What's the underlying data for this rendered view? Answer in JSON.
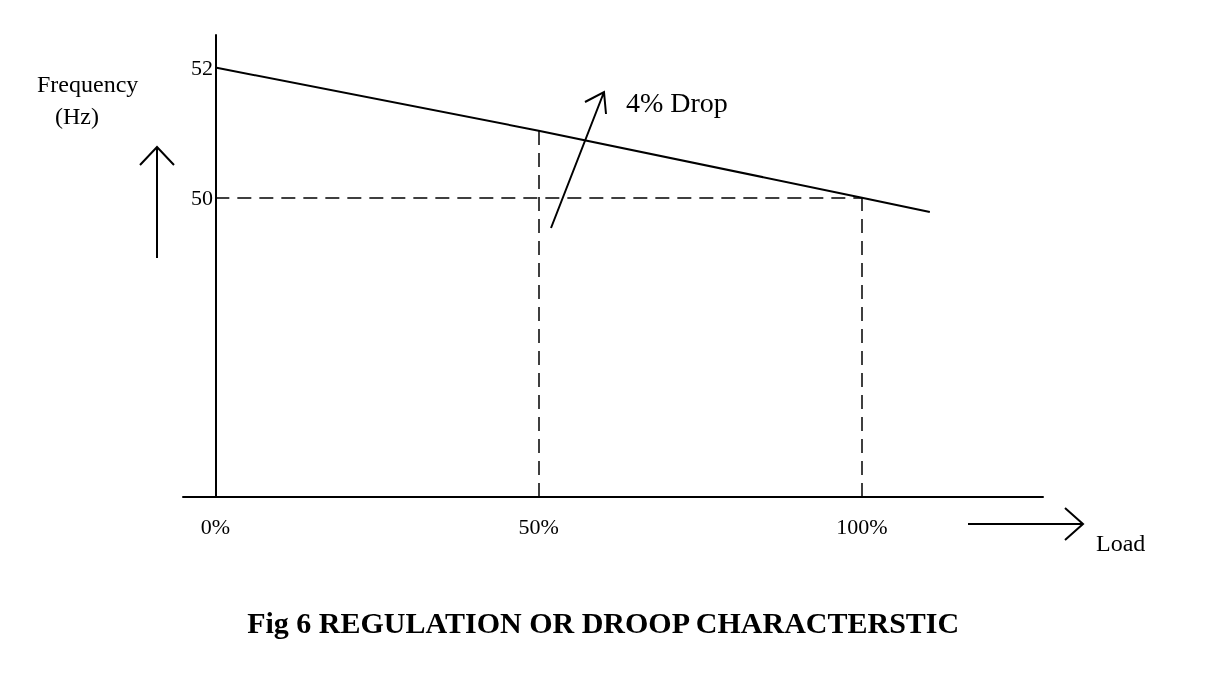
{
  "chart_data": {
    "type": "line",
    "title": "Fig 6 REGULATION OR DROOP CHARACTERSTIC",
    "xlabel": "Load",
    "ylabel": "Frequency (Hz)",
    "x": [
      0,
      50,
      100,
      110.5
    ],
    "series": [
      {
        "color": "#000000",
        "values": [
          52,
          51.03,
          50,
          49.78
        ]
      }
    ],
    "xlim": [
      -5,
      128
    ],
    "ylim": [
      45.4,
      52.5
    ],
    "xticks": [
      {
        "value": 0,
        "label": "0%"
      },
      {
        "value": 50,
        "label": "50%"
      },
      {
        "value": 100,
        "label": "100%"
      }
    ],
    "yticks": [
      50,
      52
    ],
    "ref_lines": [
      {
        "axis": "y",
        "value": 50,
        "line_style": "dashed"
      },
      {
        "axis": "x",
        "value": 50,
        "line_style": "dashed"
      },
      {
        "axis": "x",
        "value": 100,
        "line_style": "dashed"
      }
    ],
    "annotations": [
      "4% Drop"
    ],
    "marker": "none",
    "line_style": "solid",
    "grid": false
  }
}
